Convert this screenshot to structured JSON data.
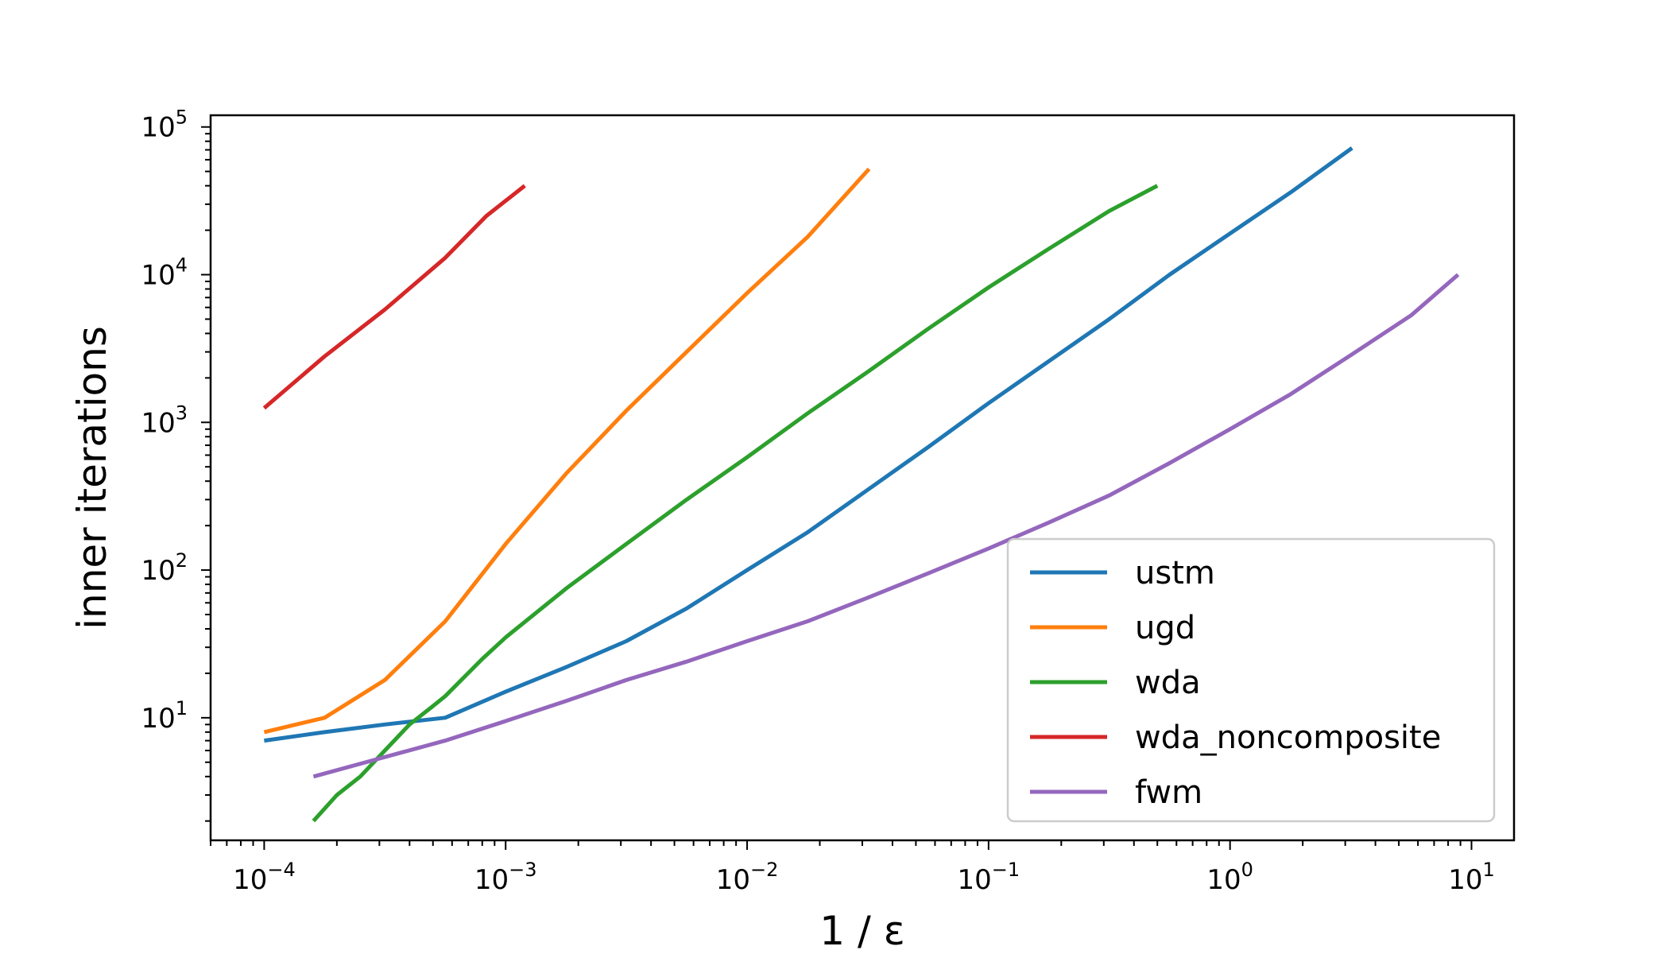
{
  "chart_data": {
    "type": "line",
    "title": "",
    "xlabel": "1 / ε",
    "ylabel": "inner iterations",
    "xscale": "log",
    "yscale": "log",
    "xlim": [
      6e-05,
      15
    ],
    "ylim": [
      1.48,
      120000
    ],
    "xticks": [
      {
        "base": "10",
        "exp": "−4",
        "value": 0.0001
      },
      {
        "base": "10",
        "exp": "−3",
        "value": 0.001
      },
      {
        "base": "10",
        "exp": "−2",
        "value": 0.01
      },
      {
        "base": "10",
        "exp": "−1",
        "value": 0.1
      },
      {
        "base": "10",
        "exp": "0",
        "value": 1
      },
      {
        "base": "10",
        "exp": "1",
        "value": 10
      }
    ],
    "yticks": [
      {
        "base": "10",
        "exp": "1",
        "value": 10
      },
      {
        "base": "10",
        "exp": "2",
        "value": 100
      },
      {
        "base": "10",
        "exp": "3",
        "value": 1000
      },
      {
        "base": "10",
        "exp": "4",
        "value": 10000
      },
      {
        "base": "10",
        "exp": "5",
        "value": 100000
      }
    ],
    "grid": false,
    "legend_position": "lower-right",
    "series": [
      {
        "name": "ustm",
        "color": "#1f77b4",
        "x": [
          0.0001,
          0.000178,
          0.000316,
          0.000562,
          0.001,
          0.00178,
          0.00316,
          0.00562,
          0.01,
          0.0178,
          0.0316,
          0.0562,
          0.1,
          0.178,
          0.316,
          0.562,
          1,
          1.78,
          3.2
        ],
        "y": [
          7,
          8,
          9,
          10,
          15,
          22,
          33,
          55,
          100,
          180,
          350,
          680,
          1350,
          2600,
          5000,
          10000,
          19000,
          36000,
          72000
        ]
      },
      {
        "name": "ugd",
        "color": "#ff7f0e",
        "x": [
          0.0001,
          0.000178,
          0.000316,
          0.000562,
          0.001,
          0.00178,
          0.00316,
          0.00562,
          0.01,
          0.0178,
          0.032
        ],
        "y": [
          8,
          10,
          18,
          45,
          150,
          450,
          1200,
          3000,
          7500,
          18000,
          52000
        ]
      },
      {
        "name": "wda",
        "color": "#2ca02c",
        "x": [
          0.00016,
          0.0002,
          0.00025,
          0.000316,
          0.0004,
          0.0005,
          0.000562,
          0.0008,
          0.001,
          0.00178,
          0.00316,
          0.00562,
          0.01,
          0.0178,
          0.0316,
          0.0562,
          0.1,
          0.178,
          0.316,
          0.5
        ],
        "y": [
          2,
          3,
          4,
          6,
          9,
          12,
          14,
          25,
          35,
          75,
          150,
          300,
          580,
          1150,
          2200,
          4300,
          8200,
          15000,
          27000,
          40000
        ]
      },
      {
        "name": "wda_noncomposite",
        "color": "#d62728",
        "x": [
          0.0001,
          0.000178,
          0.000316,
          0.000562,
          0.000832,
          0.0012
        ],
        "y": [
          1250,
          2800,
          5800,
          13000,
          25000,
          40000
        ]
      },
      {
        "name": "fwm",
        "color": "#9467bd",
        "x": [
          0.00016,
          0.0003,
          0.000562,
          0.001,
          0.00178,
          0.00316,
          0.00562,
          0.01,
          0.0178,
          0.0316,
          0.0562,
          0.1,
          0.178,
          0.316,
          0.562,
          1,
          1.78,
          3.16,
          5.62,
          8.8
        ],
        "y": [
          4,
          5.3,
          7,
          9.5,
          13,
          18,
          24,
          33,
          45,
          65,
          95,
          140,
          210,
          320,
          530,
          900,
          1550,
          2850,
          5300,
          10000
        ]
      }
    ]
  }
}
